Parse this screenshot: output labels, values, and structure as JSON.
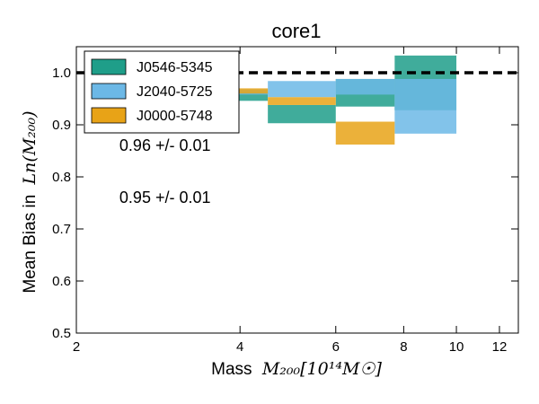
{
  "chart_data": {
    "type": "bar",
    "title": "core1",
    "xlabel_prefix": "Mass",
    "xlabel_math": "M₂₀₀[10¹⁴M☉]",
    "ylabel_prefix": "Mean Bias in",
    "ylabel_math": "Ln(M₂₀₀)",
    "x_scale": "log",
    "xlim": [
      2,
      13
    ],
    "ylim": [
      0.5,
      1.05
    ],
    "x_ticks": [
      2,
      4,
      6,
      8,
      10,
      12
    ],
    "y_ticks": [
      0.5,
      0.6,
      0.7,
      0.8,
      0.9,
      1.0
    ],
    "x_tick_labels": [
      "2",
      "4",
      "6",
      "8",
      "10",
      "12"
    ],
    "y_tick_labels": [
      "0.5",
      "0.6",
      "0.7",
      "0.8",
      "0.9",
      "1.0"
    ],
    "reference_line": {
      "y": 1.0,
      "style": "dashed",
      "color": "#000000"
    },
    "legend_position": "top-left",
    "series": [
      {
        "name": "J0546-5345",
        "color": "#1f9e89",
        "boxes": [
          {
            "x0": 3.0,
            "x1": 4.5,
            "y0": 0.946,
            "y1": 0.963
          },
          {
            "x0": 4.5,
            "x1": 6.0,
            "y0": 0.903,
            "y1": 0.938
          },
          {
            "x0": 6.0,
            "x1": 7.7,
            "y0": 0.935,
            "y1": 0.988
          },
          {
            "x0": 7.7,
            "x1": 10.0,
            "y0": 0.928,
            "y1": 1.033
          }
        ]
      },
      {
        "name": "J2040-5725",
        "color": "#6cb8e6",
        "boxes": [
          {
            "x0": 3.0,
            "x1": 4.5,
            "y0": 0.958,
            "y1": 0.968
          },
          {
            "x0": 4.5,
            "x1": 6.0,
            "y0": 0.953,
            "y1": 0.984
          },
          {
            "x0": 6.0,
            "x1": 7.7,
            "y0": 0.958,
            "y1": 0.988
          },
          {
            "x0": 7.7,
            "x1": 10.0,
            "y0": 0.883,
            "y1": 0.988
          }
        ]
      },
      {
        "name": "J0000-5748",
        "color": "#e8a317",
        "boxes": [
          {
            "x0": 3.0,
            "x1": 4.5,
            "y0": 0.96,
            "y1": 0.97
          },
          {
            "x0": 4.5,
            "x1": 6.0,
            "y0": 0.938,
            "y1": 0.953
          },
          {
            "x0": 6.0,
            "x1": 7.7,
            "y0": 0.862,
            "y1": 0.906
          }
        ]
      }
    ],
    "annotations": [
      {
        "text": "0.96 +/- 0.01",
        "x": 2.4,
        "y": 0.86
      },
      {
        "text": "0.95 +/- 0.01",
        "x": 2.4,
        "y": 0.76
      }
    ]
  }
}
